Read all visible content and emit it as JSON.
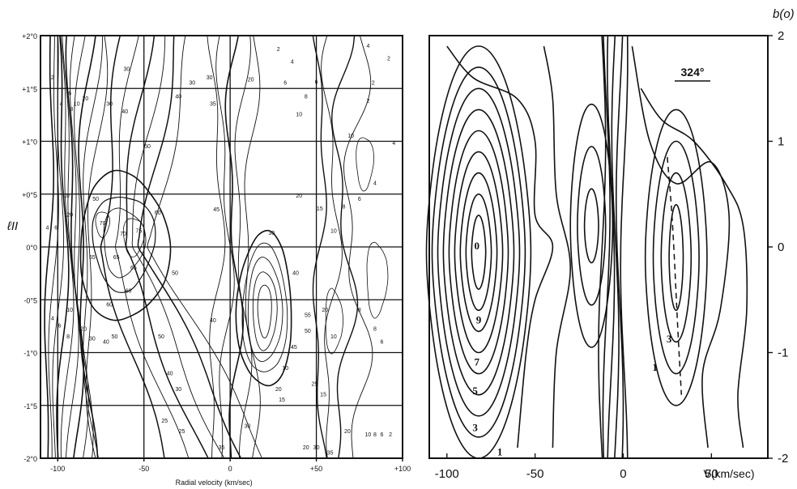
{
  "chart_data": [
    {
      "type": "contour",
      "title": "",
      "xlabel": "Radial velocity (km/sec)",
      "ylabel": "ℓII",
      "xlim": [
        -110,
        100
      ],
      "ylim": [
        -2.0,
        2.0
      ],
      "grid": true,
      "x_ticks": [
        -100,
        -50,
        0,
        50,
        100
      ],
      "x_tick_labels": [
        "-100",
        "-50",
        "0",
        "+50",
        "+100"
      ],
      "y_ticks": [
        2.0,
        1.5,
        1.0,
        0.5,
        0.0,
        -0.5,
        -1.0,
        -1.5,
        -2.0
      ],
      "y_tick_labels": [
        "+2°0",
        "+1°5",
        "+1°0",
        "+0°5",
        "0°0",
        "-0°5",
        "-1°0",
        "-1°5",
        "-2°0"
      ],
      "contour_levels": [
        2,
        4,
        6,
        8,
        10,
        15,
        20,
        25,
        30,
        35,
        40,
        45,
        50,
        55,
        60,
        65,
        70,
        75
      ],
      "contour_labels": [
        {
          "x": -95,
          "y": 0.48,
          "text": "10"
        },
        {
          "x": -93,
          "y": 0.3,
          "text": "20"
        },
        {
          "x": -106,
          "y": 0.18,
          "text": "4"
        },
        {
          "x": -101,
          "y": 0.18,
          "text": "6"
        },
        {
          "x": -74,
          "y": 0.22,
          "text": "70"
        },
        {
          "x": -78,
          "y": 0.45,
          "text": "50"
        },
        {
          "x": -53,
          "y": 0.15,
          "text": "75"
        },
        {
          "x": -62,
          "y": 0.12,
          "text": "70"
        },
        {
          "x": -66,
          "y": -0.1,
          "text": "65"
        },
        {
          "x": -80,
          "y": -0.1,
          "text": "65"
        },
        {
          "x": -56,
          "y": -0.2,
          "text": "65"
        },
        {
          "x": -59,
          "y": -0.42,
          "text": "60"
        },
        {
          "x": -42,
          "y": 0.32,
          "text": "60"
        },
        {
          "x": -32,
          "y": -0.25,
          "text": "50"
        },
        {
          "x": -70,
          "y": -0.55,
          "text": "60"
        },
        {
          "x": -48,
          "y": 0.95,
          "text": "50"
        },
        {
          "x": -8,
          "y": 0.35,
          "text": "45"
        },
        {
          "x": 38,
          "y": -0.25,
          "text": "40"
        },
        {
          "x": 45,
          "y": -0.65,
          "text": "55"
        },
        {
          "x": 45,
          "y": -0.8,
          "text": "50"
        },
        {
          "x": 37,
          "y": -0.95,
          "text": "45"
        },
        {
          "x": 32,
          "y": -1.15,
          "text": "10"
        },
        {
          "x": 28,
          "y": -1.35,
          "text": "20"
        },
        {
          "x": 30,
          "y": -1.45,
          "text": "15"
        },
        {
          "x": 40,
          "y": 0.48,
          "text": "20"
        },
        {
          "x": 52,
          "y": 0.36,
          "text": "15"
        },
        {
          "x": 24,
          "y": 0.13,
          "text": "30"
        },
        {
          "x": 60,
          "y": 0.15,
          "text": "10"
        },
        {
          "x": 66,
          "y": 0.38,
          "text": "8"
        },
        {
          "x": 75,
          "y": 0.45,
          "text": "6"
        },
        {
          "x": 70,
          "y": 1.05,
          "text": "10"
        },
        {
          "x": 95,
          "y": 0.98,
          "text": "4"
        },
        {
          "x": 84,
          "y": 0.6,
          "text": "4"
        },
        {
          "x": -84,
          "y": 1.4,
          "text": "20"
        },
        {
          "x": -70,
          "y": 1.35,
          "text": "30"
        },
        {
          "x": -61,
          "y": 1.28,
          "text": "40"
        },
        {
          "x": -60,
          "y": 1.68,
          "text": "30"
        },
        {
          "x": -30,
          "y": 1.42,
          "text": "40"
        },
        {
          "x": -22,
          "y": 1.55,
          "text": "30"
        },
        {
          "x": -10,
          "y": 1.35,
          "text": "35"
        },
        {
          "x": -12,
          "y": 1.6,
          "text": "30"
        },
        {
          "x": 12,
          "y": 1.58,
          "text": "20"
        },
        {
          "x": 32,
          "y": 1.55,
          "text": "6"
        },
        {
          "x": 44,
          "y": 1.42,
          "text": "8"
        },
        {
          "x": 40,
          "y": 1.25,
          "text": "10"
        },
        {
          "x": 50,
          "y": 1.56,
          "text": "6"
        },
        {
          "x": 28,
          "y": 1.87,
          "text": "2"
        },
        {
          "x": 36,
          "y": 1.75,
          "text": "4"
        },
        {
          "x": 80,
          "y": 1.38,
          "text": "2"
        },
        {
          "x": 83,
          "y": 1.55,
          "text": "2"
        },
        {
          "x": 92,
          "y": 1.78,
          "text": "2"
        },
        {
          "x": 80,
          "y": 1.9,
          "text": "4"
        },
        {
          "x": -103,
          "y": 1.6,
          "text": "2"
        },
        {
          "x": -98,
          "y": 1.35,
          "text": "4"
        },
        {
          "x": -93,
          "y": 1.45,
          "text": "6"
        },
        {
          "x": -92,
          "y": 1.3,
          "text": "8"
        },
        {
          "x": -89,
          "y": 1.35,
          "text": "10"
        },
        {
          "x": -103,
          "y": -0.68,
          "text": "4"
        },
        {
          "x": -99,
          "y": -0.75,
          "text": "6"
        },
        {
          "x": -94,
          "y": -0.85,
          "text": "8"
        },
        {
          "x": -93,
          "y": -0.6,
          "text": "10"
        },
        {
          "x": -85,
          "y": -0.78,
          "text": "20"
        },
        {
          "x": -80,
          "y": -0.87,
          "text": "30"
        },
        {
          "x": -72,
          "y": -0.9,
          "text": "40"
        },
        {
          "x": -67,
          "y": -0.85,
          "text": "50"
        },
        {
          "x": -40,
          "y": -0.85,
          "text": "50"
        },
        {
          "x": -35,
          "y": -1.2,
          "text": "40"
        },
        {
          "x": -30,
          "y": -1.35,
          "text": "30"
        },
        {
          "x": -38,
          "y": -1.65,
          "text": "25"
        },
        {
          "x": -28,
          "y": -1.75,
          "text": "25"
        },
        {
          "x": -10,
          "y": -0.7,
          "text": "40"
        },
        {
          "x": 10,
          "y": -1.7,
          "text": "30"
        },
        {
          "x": -5,
          "y": -1.9,
          "text": "35"
        },
        {
          "x": 60,
          "y": -0.85,
          "text": "10"
        },
        {
          "x": 55,
          "y": -0.6,
          "text": "20"
        },
        {
          "x": 75,
          "y": -0.6,
          "text": "8"
        },
        {
          "x": 84,
          "y": -0.78,
          "text": "8"
        },
        {
          "x": 88,
          "y": -0.9,
          "text": "6"
        },
        {
          "x": 49,
          "y": -1.3,
          "text": "25"
        },
        {
          "x": 54,
          "y": -1.4,
          "text": "15"
        },
        {
          "x": 44,
          "y": -1.9,
          "text": "20"
        },
        {
          "x": 50,
          "y": -1.9,
          "text": "30"
        },
        {
          "x": 58,
          "y": -1.95,
          "text": "35"
        },
        {
          "x": 68,
          "y": -1.75,
          "text": "20"
        },
        {
          "x": 80,
          "y": -1.78,
          "text": "10"
        },
        {
          "x": 84,
          "y": -1.78,
          "text": "8"
        },
        {
          "x": 88,
          "y": -1.78,
          "text": "6"
        },
        {
          "x": 93,
          "y": -1.78,
          "text": "2"
        }
      ]
    },
    {
      "type": "contour",
      "title": "324°",
      "xlabel": "V(km/sec)",
      "ylabel": "b(o)",
      "xlim": [
        -110,
        82
      ],
      "ylim": [
        -2,
        2
      ],
      "grid": false,
      "x_ticks": [
        -100,
        -50,
        0,
        50
      ],
      "x_tick_labels": [
        "-100",
        "-50",
        "0",
        "50"
      ],
      "y_ticks": [
        2,
        1,
        0,
        -1,
        -2
      ],
      "y_tick_labels": [
        "2",
        "1",
        "0",
        "-1",
        "-2"
      ],
      "contour_labels": [
        {
          "x": -83,
          "y": 0.0,
          "text": "0"
        },
        {
          "x": -82,
          "y": -0.7,
          "text": "9"
        },
        {
          "x": -83,
          "y": -1.1,
          "text": "7"
        },
        {
          "x": -84,
          "y": -1.37,
          "text": "5"
        },
        {
          "x": -84,
          "y": -1.72,
          "text": "3"
        },
        {
          "x": -70,
          "y": -1.95,
          "text": "1"
        },
        {
          "x": 26,
          "y": -0.88,
          "text": "3"
        },
        {
          "x": 18,
          "y": -1.15,
          "text": "1"
        }
      ],
      "dashed_ridge": {
        "x": [
          25,
          28,
          31,
          33
        ],
        "y": [
          0.85,
          0.2,
          -0.8,
          -1.4
        ]
      }
    }
  ]
}
